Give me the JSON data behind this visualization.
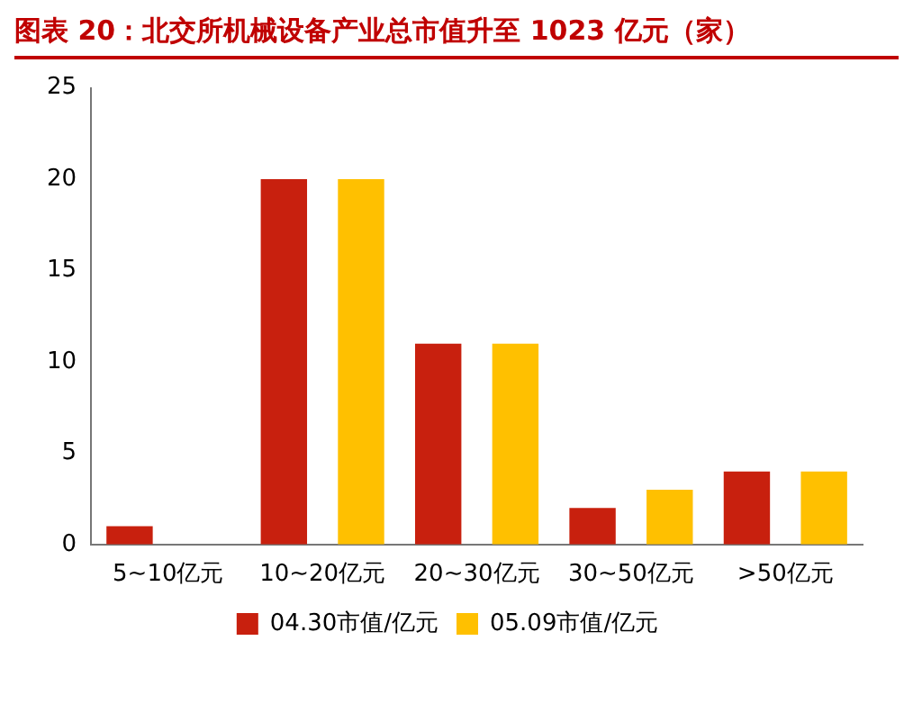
{
  "chart_data": {
    "type": "bar",
    "title": "图表 20：北交所机械设备产业总市值升至 1023 亿元（家）",
    "categories": [
      "5~10亿元",
      "10~20亿元",
      "20~30亿元",
      "30~50亿元",
      ">50亿元"
    ],
    "series": [
      {
        "name": "04.30市值/亿元",
        "color": "#c8200e",
        "values": [
          1,
          20,
          11,
          2,
          4
        ]
      },
      {
        "name": "05.09市值/亿元",
        "color": "#ffc000",
        "values": [
          0,
          20,
          11,
          3,
          4
        ]
      }
    ],
    "ylim": [
      0,
      25
    ],
    "yticks": [
      0,
      5,
      10,
      15,
      20,
      25
    ],
    "grid": false,
    "legend": "bottom"
  }
}
